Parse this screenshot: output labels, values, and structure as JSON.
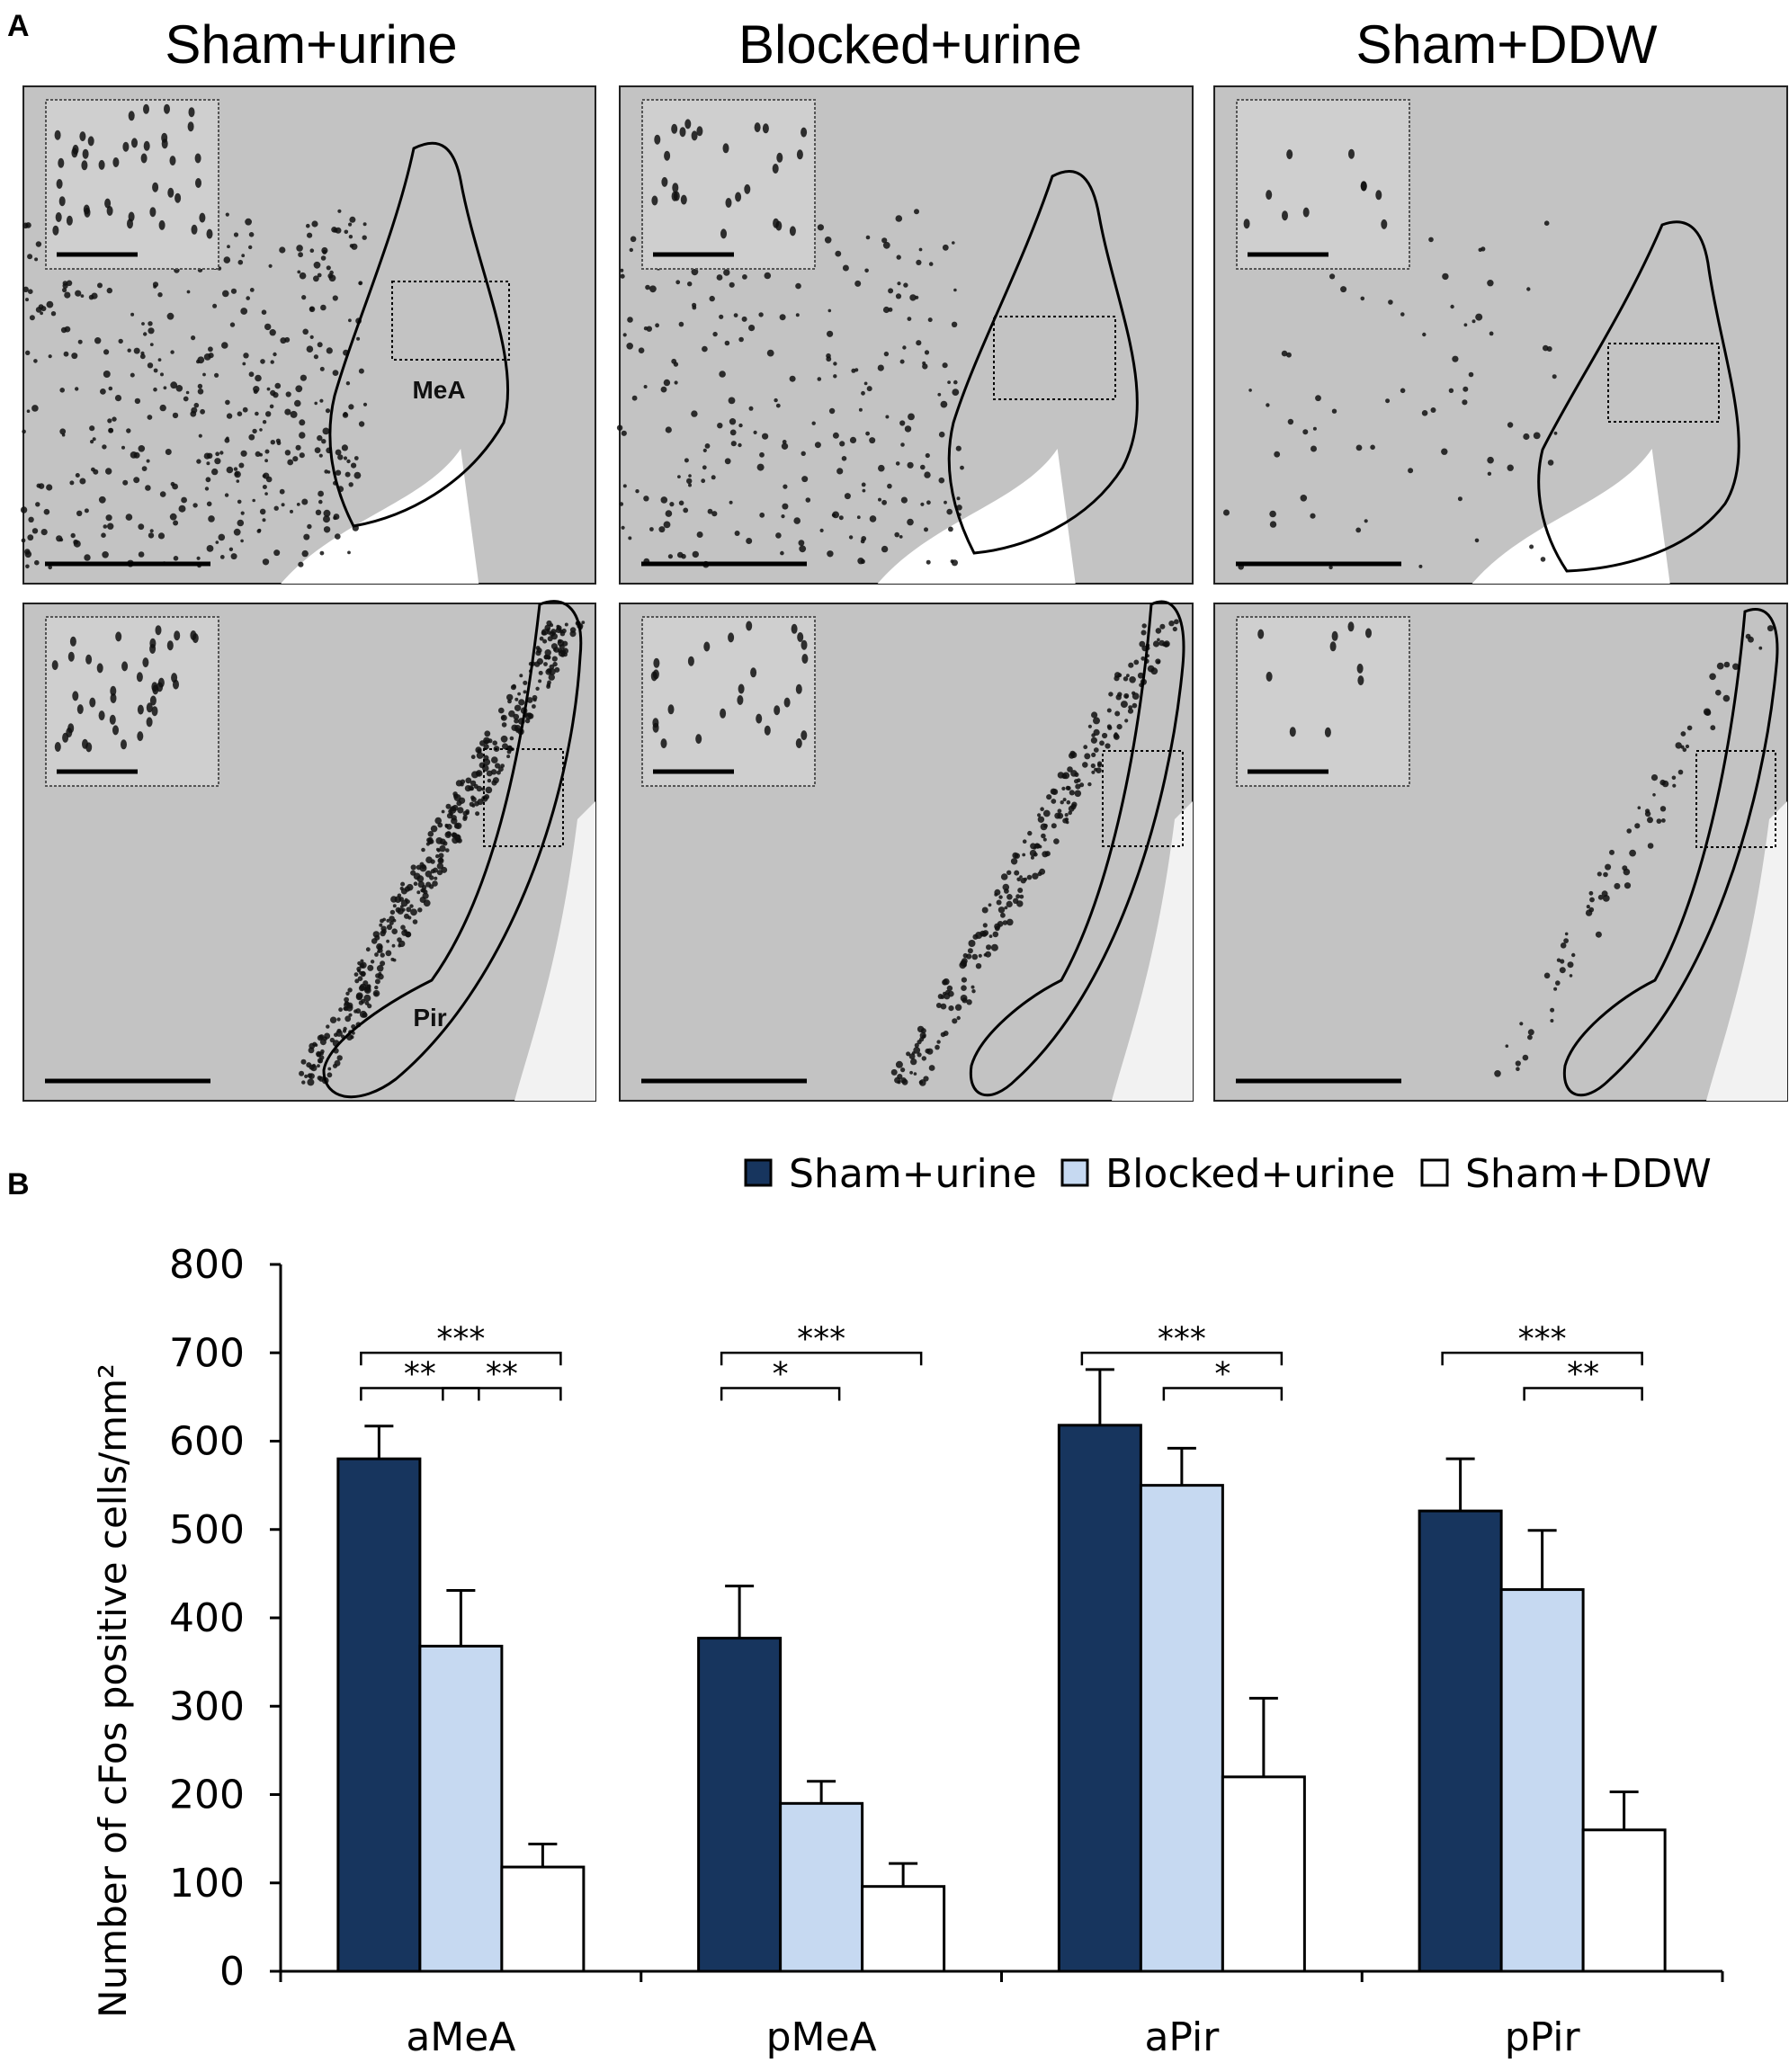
{
  "panel_a": {
    "label": "A",
    "columns": [
      "Sham+urine",
      "Blocked+urine",
      "Sham+DDW"
    ],
    "region_labels": {
      "top": "MeA",
      "bottom": "Pir"
    }
  },
  "panel_b": {
    "label": "B"
  },
  "colors": {
    "sham_urine": "#17355E",
    "blocked_urine": "#C6D9F1",
    "sham_ddw": "#FFFFFF",
    "tissue": "#BDBDBD"
  },
  "chart_data": {
    "type": "bar",
    "categories": [
      "aMeA",
      "pMeA",
      "aPir",
      "pPir"
    ],
    "series": [
      {
        "name": "Sham+urine",
        "values": [
          580,
          377,
          618,
          521
        ],
        "errors": [
          37,
          59,
          63,
          59
        ],
        "color": "#17355E"
      },
      {
        "name": "Blocked+urine",
        "values": [
          368,
          190,
          550,
          432
        ],
        "errors": [
          63,
          25,
          42,
          67
        ],
        "color": "#C6D9F1"
      },
      {
        "name": "Sham+DDW",
        "values": [
          118,
          96,
          220,
          160
        ],
        "errors": [
          26,
          26,
          89,
          43
        ],
        "color": "#FFFFFF"
      }
    ],
    "title": "",
    "xlabel": "",
    "ylabel": "Number of cFos positive cells/mm²",
    "ylim": [
      0,
      800
    ],
    "yticks": [
      "0",
      "100",
      "200",
      "300",
      "400",
      "500",
      "600",
      "700",
      "800"
    ],
    "legend_position": "top-right",
    "grid": false,
    "significance": [
      {
        "category": "aMeA",
        "from": "Sham+urine",
        "to": "Sham+DDW",
        "label": "***"
      },
      {
        "category": "aMeA",
        "from": "Sham+urine",
        "to": "Blocked+urine",
        "label": "**"
      },
      {
        "category": "aMeA",
        "from": "Blocked+urine",
        "to": "Sham+DDW",
        "label": "**"
      },
      {
        "category": "pMeA",
        "from": "Sham+urine",
        "to": "Sham+DDW",
        "label": "***"
      },
      {
        "category": "pMeA",
        "from": "Sham+urine",
        "to": "Blocked+urine",
        "label": "*"
      },
      {
        "category": "aPir",
        "from": "Sham+urine",
        "to": "Sham+DDW",
        "label": "***"
      },
      {
        "category": "aPir",
        "from": "Blocked+urine",
        "to": "Sham+DDW",
        "label": "*"
      },
      {
        "category": "pPir",
        "from": "Sham+urine",
        "to": "Sham+DDW",
        "label": "***"
      },
      {
        "category": "pPir",
        "from": "Blocked+urine",
        "to": "Sham+DDW",
        "label": "**"
      }
    ]
  }
}
